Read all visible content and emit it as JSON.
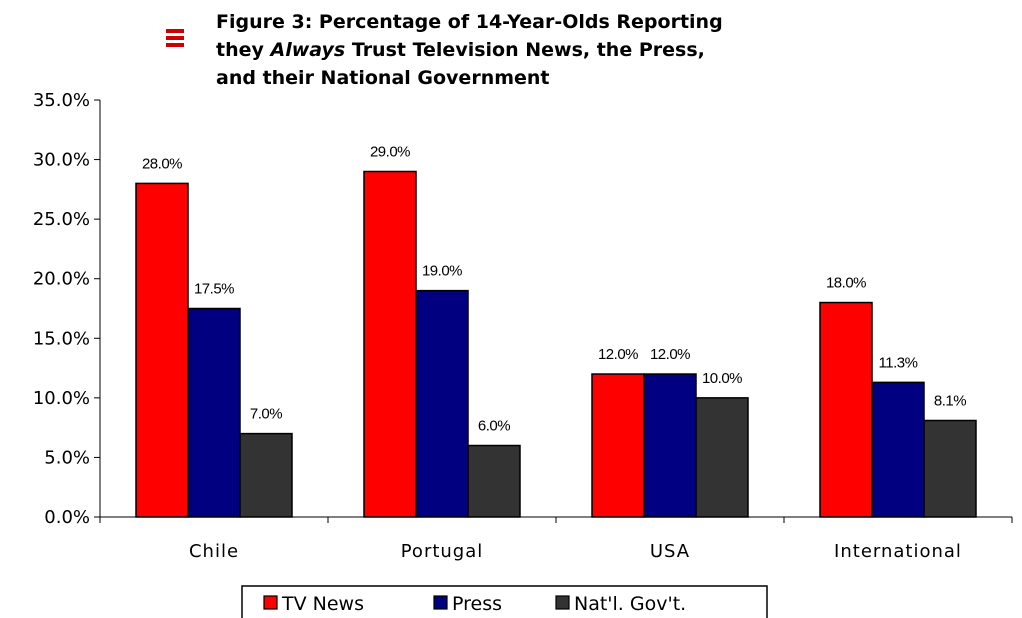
{
  "chart_data": {
    "type": "bar",
    "title_lines": [
      {
        "before": "Figure 3:  Percentage of 14-Year-Olds Reporting",
        "italic": "",
        "after": ""
      },
      {
        "before": "they ",
        "italic": "Always",
        "after": " Trust Television News, the Press,"
      },
      {
        "before": "and their National Government",
        "italic": "",
        "after": ""
      }
    ],
    "categories": [
      "Chile",
      "Portugal",
      "USA",
      "International"
    ],
    "series": [
      {
        "name": "TV News",
        "color": "#ff0000",
        "values": [
          28.0,
          29.0,
          12.0,
          18.0
        ],
        "labels": [
          "28.0%",
          "29.0%",
          "12.0%",
          "18.0%"
        ]
      },
      {
        "name": "Press",
        "color": "#000080",
        "values": [
          17.5,
          19.0,
          12.0,
          11.3
        ],
        "labels": [
          "17.5%",
          "19.0%",
          "12.0%",
          "11.3%"
        ]
      },
      {
        "name": "Nat'l. Gov't.",
        "color": "#333333",
        "values": [
          7.0,
          6.0,
          10.0,
          8.1
        ],
        "labels": [
          "7.0%",
          "6.0%",
          "10.0%",
          "8.1%"
        ]
      }
    ],
    "y_ticks": [
      0,
      5,
      10,
      15,
      20,
      25,
      30,
      35
    ],
    "y_tick_labels": [
      "0.0%",
      "5.0%",
      "10.0%",
      "15.0%",
      "20.0%",
      "25.0%",
      "30.0%",
      "35.0%"
    ],
    "ylim": [
      0,
      35
    ],
    "grid": false,
    "legend_position": "bottom",
    "xlabel": "",
    "ylabel": ""
  }
}
